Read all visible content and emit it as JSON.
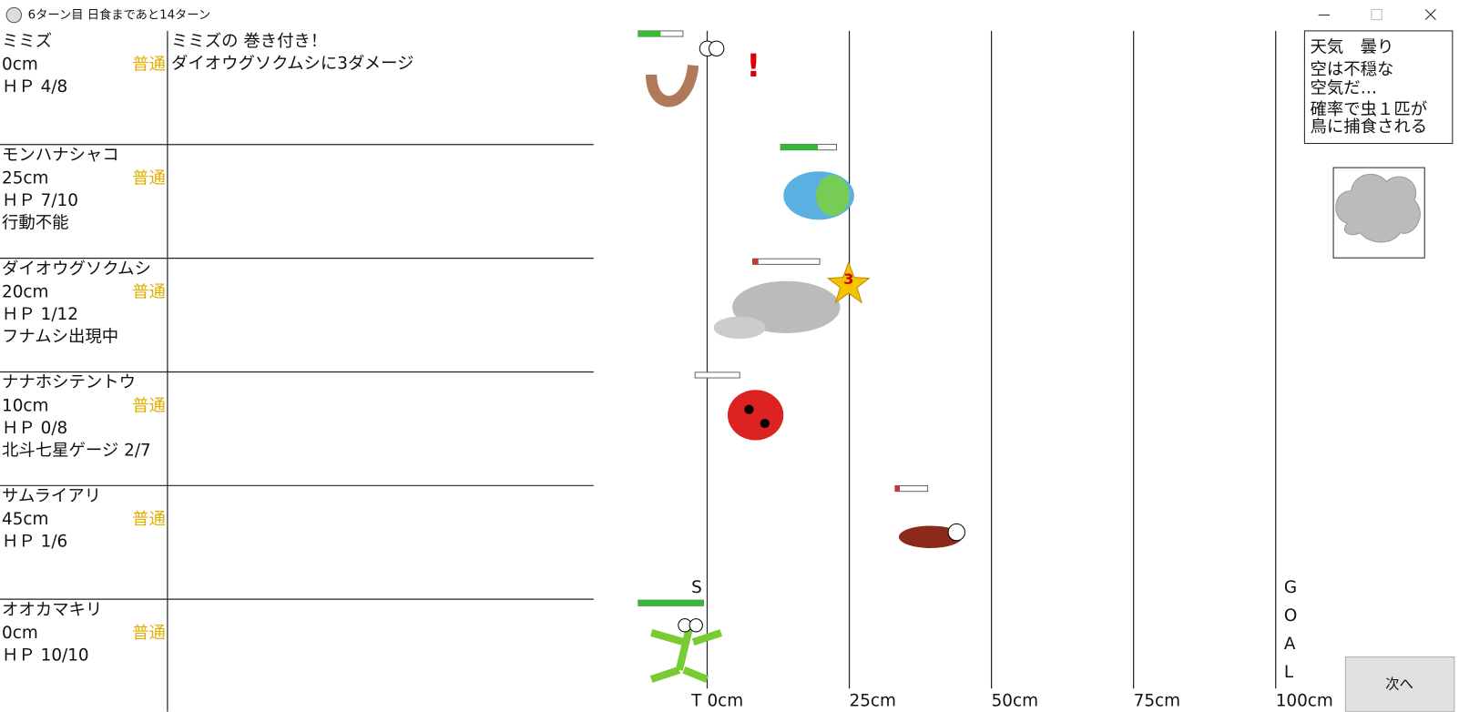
{
  "window_title": "6ターン目 日食まであと14ターン",
  "creatures": [
    {
      "name": "ミミズ",
      "distance": "0cm",
      "status": "普通",
      "hp": "ＨＰ 4/8",
      "note": null
    },
    {
      "name": "モンハナシャコ",
      "distance": "25cm",
      "status": "普通",
      "hp": "ＨＰ 7/10",
      "note": "行動不能"
    },
    {
      "name": "ダイオウグソクムシ",
      "distance": "20cm",
      "status": "普通",
      "hp": "ＨＰ 1/12",
      "note": "フナムシ出現中"
    },
    {
      "name": "ナナホシテントウ",
      "distance": "10cm",
      "status": "普通",
      "hp": "ＨＰ 0/8",
      "note": "北斗七星ゲージ 2/7"
    },
    {
      "name": "サムライアリ",
      "distance": "45cm",
      "status": "普通",
      "hp": "ＨＰ 1/6",
      "note": null
    },
    {
      "name": "オオカマキリ",
      "distance": "0cm",
      "status": "普通",
      "hp": "ＨＰ 10/10",
      "note": null
    }
  ],
  "log": [
    "ミミズの 巻き付き！",
    "ダイオウグソクムシに3ダメージ"
  ],
  "track": {
    "start_top": "S",
    "start_bottom": "T",
    "marks": [
      "0cm",
      "25cm",
      "50cm",
      "75cm",
      "100cm"
    ],
    "goal": [
      "G",
      "O",
      "A",
      "L"
    ]
  },
  "effects": {
    "exclaim": "!",
    "star_damage": "3"
  },
  "weather": {
    "lines": [
      "天気　曇り",
      "空は不穏な",
      "空気だ…",
      "確率で虫１匹が",
      "鳥に捕食される"
    ]
  },
  "next_button": "次へ"
}
